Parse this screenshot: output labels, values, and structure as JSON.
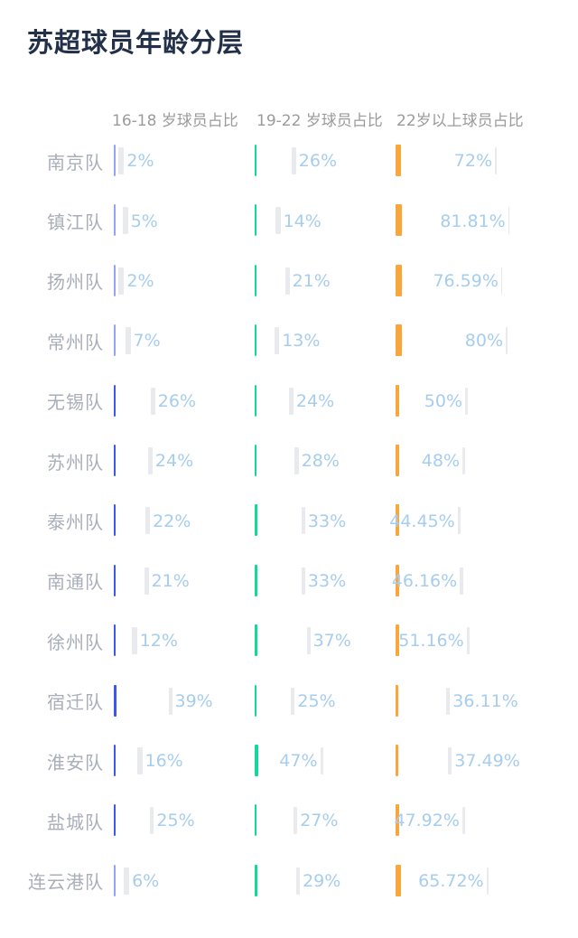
{
  "title": "苏超球员年龄分层",
  "columns": [
    {
      "header": "16-18 岁球员占比"
    },
    {
      "header": "19-22 岁球员占比"
    },
    {
      "header": "22岁以上球员占比"
    }
  ],
  "rows": [
    {
      "team": "南京队",
      "values": [
        {
          "label": "2%",
          "pct": 2
        },
        {
          "label": "26%",
          "pct": 26
        },
        {
          "label": "72%",
          "pct": 72
        }
      ]
    },
    {
      "team": "镇江队",
      "values": [
        {
          "label": "5%",
          "pct": 5
        },
        {
          "label": "14%",
          "pct": 14
        },
        {
          "label": "81.81%",
          "pct": 81.81
        }
      ]
    },
    {
      "team": "扬州队",
      "values": [
        {
          "label": "2%",
          "pct": 2
        },
        {
          "label": "21%",
          "pct": 21
        },
        {
          "label": "76.59%",
          "pct": 76.59
        }
      ]
    },
    {
      "team": "常州队",
      "values": [
        {
          "label": "7%",
          "pct": 7
        },
        {
          "label": "13%",
          "pct": 13
        },
        {
          "label": "80%",
          "pct": 80
        }
      ]
    },
    {
      "team": "无锡队",
      "values": [
        {
          "label": "26%",
          "pct": 26
        },
        {
          "label": "24%",
          "pct": 24
        },
        {
          "label": "50%",
          "pct": 50
        }
      ]
    },
    {
      "team": "苏州队",
      "values": [
        {
          "label": "24%",
          "pct": 24
        },
        {
          "label": "28%",
          "pct": 28
        },
        {
          "label": "48%",
          "pct": 48
        }
      ]
    },
    {
      "team": "泰州队",
      "values": [
        {
          "label": "22%",
          "pct": 22
        },
        {
          "label": "33%",
          "pct": 33
        },
        {
          "label": "44.45%",
          "pct": 44.45
        }
      ]
    },
    {
      "team": "南通队",
      "values": [
        {
          "label": "21%",
          "pct": 21
        },
        {
          "label": "33%",
          "pct": 33
        },
        {
          "label": "46.16%",
          "pct": 46.16
        }
      ]
    },
    {
      "team": "徐州队",
      "values": [
        {
          "label": "12%",
          "pct": 12
        },
        {
          "label": "37%",
          "pct": 37
        },
        {
          "label": "51.16%",
          "pct": 51.16
        }
      ]
    },
    {
      "team": "宿迁队",
      "values": [
        {
          "label": "39%",
          "pct": 39
        },
        {
          "label": "25%",
          "pct": 25
        },
        {
          "label": "36.11%",
          "pct": 36.11
        }
      ]
    },
    {
      "team": "淮安队",
      "values": [
        {
          "label": "16%",
          "pct": 16
        },
        {
          "label": "47%",
          "pct": 47
        },
        {
          "label": "37.49%",
          "pct": 37.49
        }
      ]
    },
    {
      "team": "盐城队",
      "values": [
        {
          "label": "25%",
          "pct": 25
        },
        {
          "label": "27%",
          "pct": 27
        },
        {
          "label": "47.92%",
          "pct": 47.92
        }
      ]
    },
    {
      "team": "连云港队",
      "values": [
        {
          "label": "6%",
          "pct": 6
        },
        {
          "label": "29%",
          "pct": 29
        },
        {
          "label": "65.72%",
          "pct": 65.72
        }
      ]
    }
  ],
  "colors": {
    "bar_16_18": "#3d57ea",
    "bar_19_22": "#12d89c",
    "bar_22_plus": "#f9a63c",
    "thumb": "#e8eaed",
    "value_text": "#a7cdee",
    "team_text": "#a9aeba",
    "header_text": "#9b9b9b",
    "title_text": "#233049",
    "background": "#ffffff"
  },
  "chart_data": {
    "type": "table",
    "title": "苏超球员年龄分层",
    "categories": [
      "南京队",
      "镇江队",
      "扬州队",
      "常州队",
      "无锡队",
      "苏州队",
      "泰州队",
      "南通队",
      "徐州队",
      "宿迁队",
      "淮安队",
      "盐城队",
      "连云港队"
    ],
    "series": [
      {
        "name": "16-18 岁球员占比",
        "unit": "%",
        "color": "#3d57ea",
        "values": [
          2,
          5,
          2,
          7,
          26,
          24,
          22,
          21,
          12,
          39,
          16,
          25,
          6
        ]
      },
      {
        "name": "19-22 岁球员占比",
        "unit": "%",
        "color": "#12d89c",
        "values": [
          26,
          14,
          21,
          13,
          24,
          28,
          33,
          33,
          37,
          25,
          47,
          27,
          29
        ]
      },
      {
        "name": "22岁以上球员占比",
        "unit": "%",
        "color": "#f9a63c",
        "values": [
          72,
          81.81,
          76.59,
          80,
          50,
          48,
          44.45,
          46.16,
          51.16,
          36.11,
          37.49,
          47.92,
          65.72
        ]
      }
    ],
    "value_range": [
      0,
      100
    ],
    "grid": false,
    "legend_position": "none",
    "notes": "Each cell shows a colored vertical tick (column accent color), a light-gray slider thumb positioned proportionally to the percentage, and the percentage label in light blue."
  }
}
